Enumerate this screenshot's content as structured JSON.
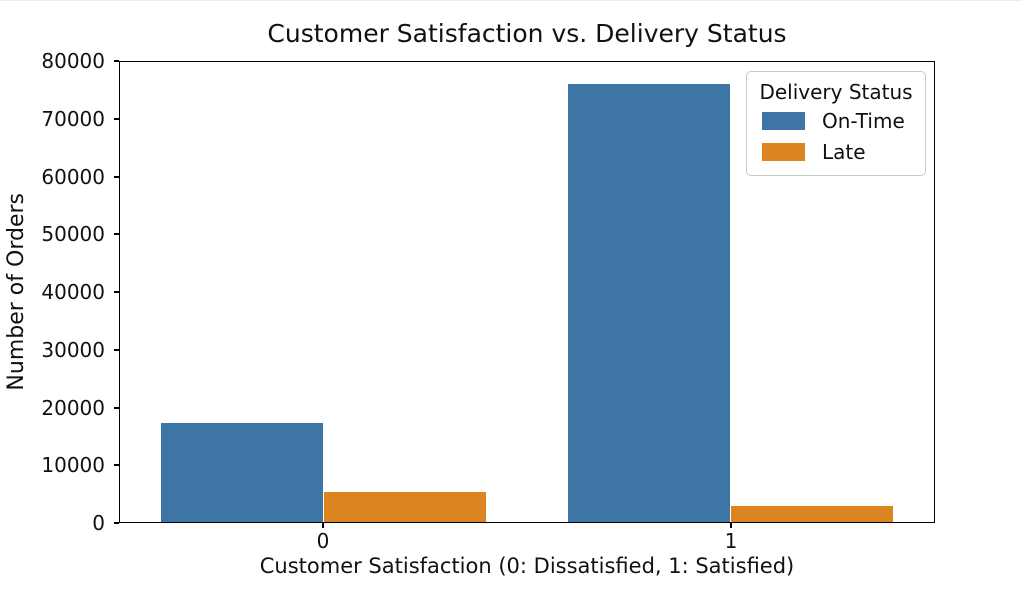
{
  "chart_data": {
    "type": "bar",
    "title": "Customer Satisfaction vs. Delivery Status",
    "xlabel": "Customer Satisfaction (0: Dissatisfied, 1: Satisfied)",
    "ylabel": "Number of Orders",
    "categories": [
      "0",
      "1"
    ],
    "series": [
      {
        "name": "On-Time",
        "values": [
          17300,
          76200
        ],
        "color": "#3d76a5"
      },
      {
        "name": "Late",
        "values": [
          5200,
          2800
        ],
        "color": "#dc8420"
      }
    ],
    "ylim": [
      0,
      80000
    ],
    "yticks": [
      0,
      10000,
      20000,
      30000,
      40000,
      50000,
      60000,
      70000,
      80000
    ],
    "x_range": [
      -0.5,
      1.5
    ],
    "bar_width": 0.4,
    "grid": false,
    "legend": {
      "title": "Delivery Status",
      "position": "upper right"
    }
  }
}
